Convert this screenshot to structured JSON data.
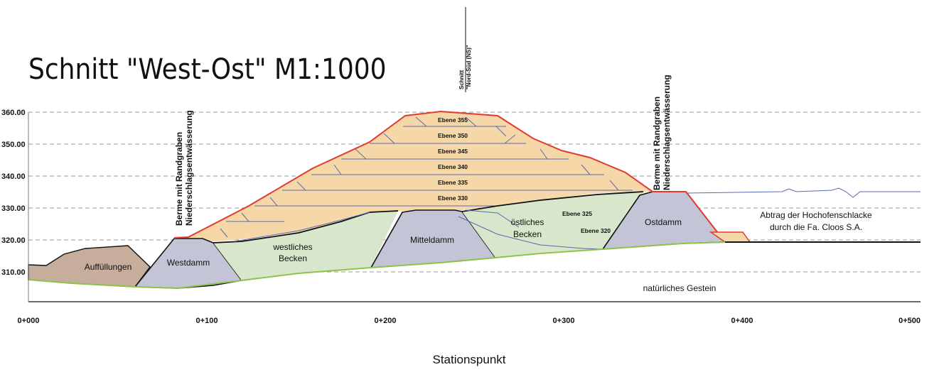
{
  "title": "Schnitt \"West-Ost\" M1:1000",
  "x_axis_label": "Stationspunkt",
  "y_ticks": [
    {
      "label": "360.00",
      "value": 360
    },
    {
      "label": "350.00",
      "value": 350
    },
    {
      "label": "340.00",
      "value": 340
    },
    {
      "label": "330.00",
      "value": 330
    },
    {
      "label": "320.00",
      "value": 320
    },
    {
      "label": "310.00",
      "value": 310
    }
  ],
  "x_ticks": [
    {
      "label": "0+000",
      "value": 0
    },
    {
      "label": "0+100",
      "value": 100
    },
    {
      "label": "0+200",
      "value": 200
    },
    {
      "label": "0+300",
      "value": 300
    },
    {
      "label": "0+400",
      "value": 400
    },
    {
      "label": "0+500",
      "value": 500
    }
  ],
  "levels": [
    "Ebene 355",
    "Ebene 350",
    "Ebene 345",
    "Ebene 340",
    "Ebene 335",
    "Ebene 330"
  ],
  "regions": {
    "auffuellungen": "Auffüllungen",
    "westdamm": "Westdamm",
    "westliches_becken_1": "westliches",
    "westliches_becken_2": "Becken",
    "mitteldamm": "Mitteldamm",
    "oestliches_becken_1": "östliches",
    "oestliches_becken_2": "Becken",
    "ebene_325": "Ebene 325",
    "ebene_320": "Ebene 320",
    "ostdamm": "Ostdamm",
    "abtrag_1": "Abtrag der Hochofenschlacke",
    "abtrag_2": "durch die Fa. Cloos S.A.",
    "gestein": "natürliches Gestein"
  },
  "annotations": {
    "berme_west_1": "Berme mit Randgraben",
    "berme_west_2": "Niederschlagsentwässerung",
    "berme_ost_1": "Berme mit Randgraben",
    "berme_ost_2": "Niederschlagsentwässerung",
    "schnitt_ns_1": "Schnitt",
    "schnitt_ns_2": "\"Nord-Süd (NS)\""
  },
  "colors": {
    "heap": "#f6d7a7",
    "dam": "#c3c5d6",
    "basin": "#d8e6cc",
    "fill": "#c7ad9c",
    "surface_line": "#e23b2e",
    "ground_line": "#8fc34a",
    "contour": "#5a68b0"
  }
}
